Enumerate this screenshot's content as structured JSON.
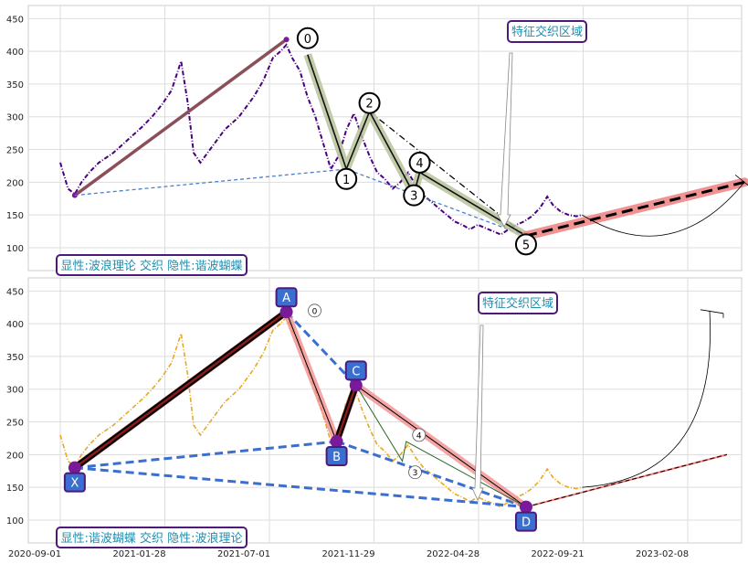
{
  "chart_data": [
    {
      "type": "line",
      "title": "",
      "xlabel": "",
      "ylabel": "",
      "ylim": [
        65,
        470
      ],
      "yticks": [
        100,
        150,
        200,
        250,
        300,
        350,
        400,
        450
      ],
      "grid": true,
      "colors": {
        "price": "#4b0082",
        "xa_line": "#8b4f5a",
        "wave_band": "#b7c39b",
        "projection_band": "#f08080",
        "dashed_blue": "#4a7fcc"
      },
      "series": [
        {
          "name": "",
          "style": "price",
          "points": [
            [
              0,
              230
            ],
            [
              8,
              190
            ],
            [
              15,
              182
            ],
            [
              22,
              200
            ],
            [
              30,
              215
            ],
            [
              40,
              230
            ],
            [
              55,
              245
            ],
            [
              70,
              265
            ],
            [
              85,
              285
            ],
            [
              95,
              300
            ],
            [
              105,
              318
            ],
            [
              115,
              340
            ],
            [
              125,
              385
            ],
            [
              132,
              320
            ],
            [
              138,
              245
            ],
            [
              145,
              230
            ],
            [
              155,
              250
            ],
            [
              170,
              280
            ],
            [
              185,
              300
            ],
            [
              200,
              330
            ],
            [
              210,
              355
            ],
            [
              220,
              390
            ],
            [
              228,
              400
            ],
            [
              234,
              410
            ],
            [
              240,
              390
            ],
            [
              248,
              370
            ],
            [
              256,
              330
            ],
            [
              264,
              300
            ],
            [
              272,
              260
            ],
            [
              280,
              220
            ],
            [
              288,
              240
            ],
            [
              296,
              280
            ],
            [
              304,
              305
            ],
            [
              312,
              270
            ],
            [
              320,
              240
            ],
            [
              328,
              215
            ],
            [
              336,
              205
            ],
            [
              344,
              190
            ],
            [
              352,
              200
            ],
            [
              360,
              215
            ],
            [
              368,
              195
            ],
            [
              376,
              180
            ],
            [
              384,
              170
            ],
            [
              392,
              160
            ],
            [
              400,
              150
            ],
            [
              408,
              140
            ],
            [
              416,
              135
            ],
            [
              424,
              128
            ],
            [
              432,
              135
            ],
            [
              440,
              130
            ],
            [
              448,
              125
            ],
            [
              456,
              120
            ],
            [
              464,
              128
            ],
            [
              472,
              135
            ],
            [
              480,
              140
            ],
            [
              488,
              148
            ],
            [
              496,
              160
            ],
            [
              504,
              178
            ],
            [
              510,
              165
            ],
            [
              518,
              155
            ],
            [
              526,
              150
            ],
            [
              534,
              148
            ],
            [
              540,
              150
            ]
          ]
        },
        {
          "name": "",
          "style": "xa",
          "points": [
            [
              15,
              180
            ],
            [
              234,
              418
            ]
          ]
        },
        {
          "name": "",
          "style": "waves",
          "points": [
            [
              256,
              395
            ],
            [
              296,
              220
            ],
            [
              320,
              308
            ],
            [
              366,
              182
            ],
            [
              372,
              215
            ],
            [
              482,
              118
            ]
          ]
        },
        {
          "name": "",
          "style": "projection",
          "points": [
            [
              482,
              118
            ],
            [
              708,
              200
            ]
          ]
        }
      ],
      "wave_labels": [
        {
          "label": "0",
          "x": 256,
          "y": 420
        },
        {
          "label": "1",
          "x": 296,
          "y": 205
        },
        {
          "label": "2",
          "x": 320,
          "y": 321
        },
        {
          "label": "3",
          "x": 366,
          "y": 180
        },
        {
          "label": "4",
          "x": 372,
          "y": 230
        },
        {
          "label": "5",
          "x": 482,
          "y": 105
        }
      ],
      "annotations": {
        "region": "特征交织区域",
        "note": "显性:波浪理论 交织 隐性:谐波蝴蝶"
      }
    },
    {
      "type": "line",
      "title": "",
      "xlabel": "",
      "ylabel": "",
      "ylim": [
        65,
        470
      ],
      "yticks": [
        100,
        150,
        200,
        250,
        300,
        350,
        400,
        450
      ],
      "xticks": [
        "2020-09-01",
        "2021-01-28",
        "2021-07-01",
        "2021-11-29",
        "2022-04-28",
        "2022-09-21",
        "2023-02-08"
      ],
      "grid": true,
      "colors": {
        "price": "#e8a820",
        "xabcd": "#8b1a1a",
        "xabcd_glow": "#f08080",
        "dashed_blue": "#3a6fd0",
        "label_box": "#3a6fd0",
        "point": "#7a1a9a"
      },
      "series": [
        {
          "name": "",
          "style": "price",
          "points": [
            [
              0,
              230
            ],
            [
              8,
              190
            ],
            [
              15,
              182
            ],
            [
              22,
              200
            ],
            [
              30,
              215
            ],
            [
              40,
              230
            ],
            [
              55,
              245
            ],
            [
              70,
              265
            ],
            [
              85,
              285
            ],
            [
              95,
              300
            ],
            [
              105,
              318
            ],
            [
              115,
              340
            ],
            [
              125,
              385
            ],
            [
              132,
              320
            ],
            [
              138,
              245
            ],
            [
              145,
              230
            ],
            [
              155,
              250
            ],
            [
              170,
              280
            ],
            [
              185,
              300
            ],
            [
              200,
              330
            ],
            [
              210,
              355
            ],
            [
              220,
              390
            ],
            [
              228,
              400
            ],
            [
              234,
              410
            ],
            [
              240,
              390
            ],
            [
              248,
              370
            ],
            [
              256,
              330
            ],
            [
              264,
              300
            ],
            [
              272,
              260
            ],
            [
              280,
              220
            ],
            [
              288,
              240
            ],
            [
              296,
              280
            ],
            [
              304,
              305
            ],
            [
              312,
              270
            ],
            [
              320,
              240
            ],
            [
              328,
              215
            ],
            [
              336,
              205
            ],
            [
              344,
              190
            ],
            [
              352,
              200
            ],
            [
              360,
              215
            ],
            [
              368,
              195
            ],
            [
              376,
              180
            ],
            [
              384,
              170
            ],
            [
              392,
              160
            ],
            [
              400,
              150
            ],
            [
              408,
              140
            ],
            [
              416,
              135
            ],
            [
              424,
              128
            ],
            [
              432,
              135
            ],
            [
              440,
              130
            ],
            [
              448,
              125
            ],
            [
              456,
              120
            ],
            [
              464,
              128
            ],
            [
              472,
              135
            ],
            [
              480,
              140
            ],
            [
              488,
              148
            ],
            [
              496,
              160
            ],
            [
              504,
              178
            ],
            [
              510,
              165
            ],
            [
              518,
              155
            ],
            [
              526,
              150
            ],
            [
              534,
              148
            ],
            [
              540,
              150
            ]
          ]
        },
        {
          "name": "",
          "style": "xabcd",
          "points": [
            [
              15,
              180
            ],
            [
              234,
              418
            ],
            [
              286,
              220
            ],
            [
              306,
              306
            ],
            [
              482,
              120
            ]
          ]
        },
        {
          "name": "",
          "style": "projection",
          "points": [
            [
              482,
              120
            ],
            [
              690,
              200
            ]
          ]
        }
      ],
      "xabcd_labels": [
        {
          "label": "X",
          "x": 15,
          "y": 180
        },
        {
          "label": "A",
          "x": 234,
          "y": 418
        },
        {
          "label": "B",
          "x": 286,
          "y": 220
        },
        {
          "label": "C",
          "x": 306,
          "y": 306
        },
        {
          "label": "D",
          "x": 482,
          "y": 120
        }
      ],
      "wave_labels": [
        {
          "label": "0",
          "x": 250,
          "y": 420
        },
        {
          "label": "3",
          "x": 354,
          "y": 180
        },
        {
          "label": "4",
          "x": 358,
          "y": 230
        }
      ],
      "annotations": {
        "region": "特征交织区域",
        "note": "显性:谐波蝴蝶 交织 隐性:波浪理论"
      }
    }
  ]
}
